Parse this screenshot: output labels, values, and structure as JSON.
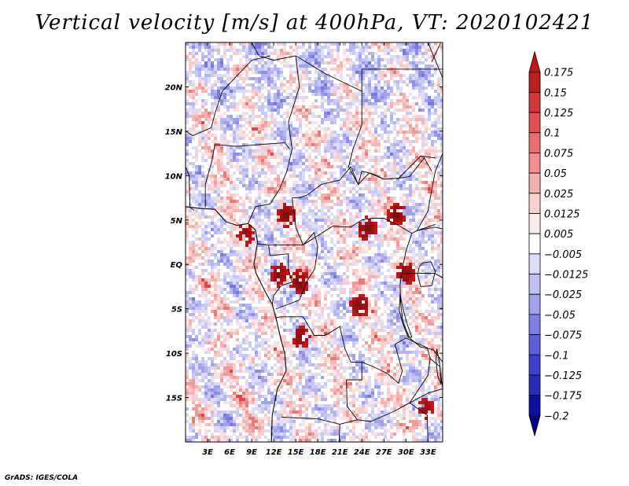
{
  "title": "Vertical velocity [m/s] at 400hPa, VT: 2020102421",
  "credit": "GrADS: IGES/COLA",
  "axes": {
    "lat_labels": [
      "20N",
      "15N",
      "10N",
      "5N",
      "EQ",
      "5S",
      "10S",
      "15S"
    ],
    "lat_values": [
      20,
      15,
      10,
      5,
      0,
      -5,
      -10,
      -15
    ],
    "lon_labels": [
      "3E",
      "6E",
      "9E",
      "12E",
      "15E",
      "18E",
      "21E",
      "24E",
      "27E",
      "30E",
      "33E"
    ],
    "lon_values": [
      3,
      6,
      9,
      12,
      15,
      18,
      21,
      24,
      27,
      30,
      33
    ],
    "lon_range": [
      0,
      35
    ],
    "lat_range": [
      -20,
      25
    ]
  },
  "colorbar": {
    "labels": [
      "0.175",
      "0.15",
      "0.125",
      "0.1",
      "0.075",
      "0.05",
      "0.025",
      "0.0125",
      "0.005",
      "−0.005",
      "−0.0125",
      "−0.025",
      "−0.05",
      "−0.075",
      "−0.1",
      "−0.125",
      "−0.175",
      "−0.2"
    ],
    "colors": [
      "#c01818",
      "#b82020",
      "#d43838",
      "#e05050",
      "#e87070",
      "#f09090",
      "#f4b0b0",
      "#f8d0d0",
      "#fcecec",
      "#ffffff",
      "#dcdcf8",
      "#c0c0f4",
      "#a0a0ec",
      "#7f7fe4",
      "#5f5fdc",
      "#3f3fd0",
      "#2a2ab8",
      "#1010a0",
      "#000080"
    ]
  },
  "features": {
    "red_clusters": [
      {
        "lon": 13.5,
        "lat": 5.7,
        "strength": 1.0
      },
      {
        "lon": 24.5,
        "lat": 4.2,
        "strength": 0.9
      },
      {
        "lon": 28.5,
        "lat": 5.8,
        "strength": 0.9
      },
      {
        "lon": 15.3,
        "lat": -1.8,
        "strength": 1.0
      },
      {
        "lon": 12.5,
        "lat": -1.0,
        "strength": 0.8
      },
      {
        "lon": 23.5,
        "lat": -4.5,
        "strength": 0.9
      },
      {
        "lon": 29.8,
        "lat": -0.8,
        "strength": 0.8
      },
      {
        "lon": 15.5,
        "lat": -8.0,
        "strength": 0.8
      },
      {
        "lon": 8.0,
        "lat": 3.5,
        "strength": 0.6
      },
      {
        "lon": 32.5,
        "lat": -16.0,
        "strength": 0.6
      }
    ]
  }
}
